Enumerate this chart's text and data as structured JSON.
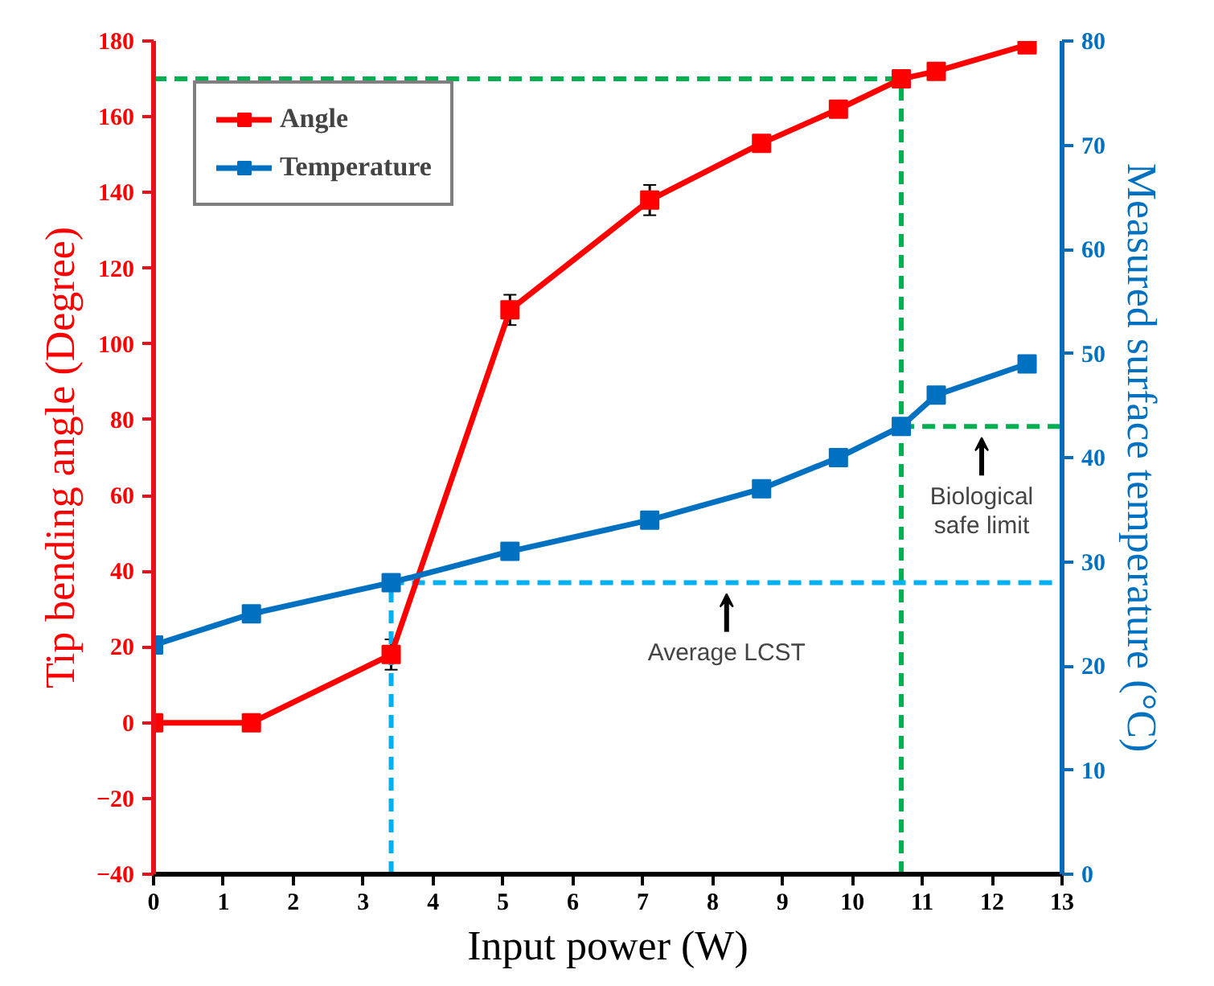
{
  "chart_data": {
    "type": "line",
    "xlabel": "Input power (W)",
    "ylabel": "Tip bending angle (Degree)",
    "y2label": "Measured surface temperature (°C)",
    "x": [
      0,
      1.4,
      3.4,
      5.1,
      7.1,
      8.7,
      9.8,
      10.7,
      11.2,
      12.5
    ],
    "series": [
      {
        "name": "Angle",
        "color": "#ff0000",
        "values": [
          0,
          0,
          18,
          109,
          138,
          153,
          162,
          170,
          172,
          179
        ],
        "errors": [
          null,
          null,
          4,
          4,
          4,
          null,
          null,
          null,
          null,
          null
        ]
      },
      {
        "name": "Temperature",
        "color": "#0070c0",
        "axis": "y2",
        "values": [
          22,
          25,
          28,
          31,
          34,
          37,
          40,
          43,
          46,
          49
        ]
      }
    ],
    "xlim": [
      0,
      13
    ],
    "xticks": [
      0,
      1,
      2,
      3,
      4,
      5,
      6,
      7,
      8,
      9,
      10,
      11,
      12,
      13
    ],
    "ylim": [
      -40,
      180
    ],
    "yticks": [
      -40,
      -20,
      0,
      20,
      40,
      60,
      80,
      100,
      120,
      140,
      160,
      180
    ],
    "y2lim": [
      0,
      80
    ],
    "y2ticks": [
      0,
      10,
      20,
      30,
      40,
      50,
      60,
      70,
      80
    ],
    "ref_lines": [
      {
        "axis": "y",
        "value": 170,
        "color": "#00b050",
        "line_style": "dashed"
      },
      {
        "axis": "x",
        "value": 10.7,
        "color": "#00b050",
        "line_style": "dashed"
      },
      {
        "axis": "y2",
        "value": 43,
        "label": "Biological\nsafe limit",
        "color": "#00b050",
        "line_style": "dashed"
      },
      {
        "axis": "y2",
        "value": 28,
        "label": "Average LCST",
        "color": "#00b0f0",
        "line_style": "dashed"
      },
      {
        "axis": "x",
        "value": 3.4,
        "color": "#00b0f0",
        "line_style": "dashed"
      }
    ],
    "marker": "square",
    "line_style": "solid",
    "legend": "top left",
    "grid": false
  }
}
